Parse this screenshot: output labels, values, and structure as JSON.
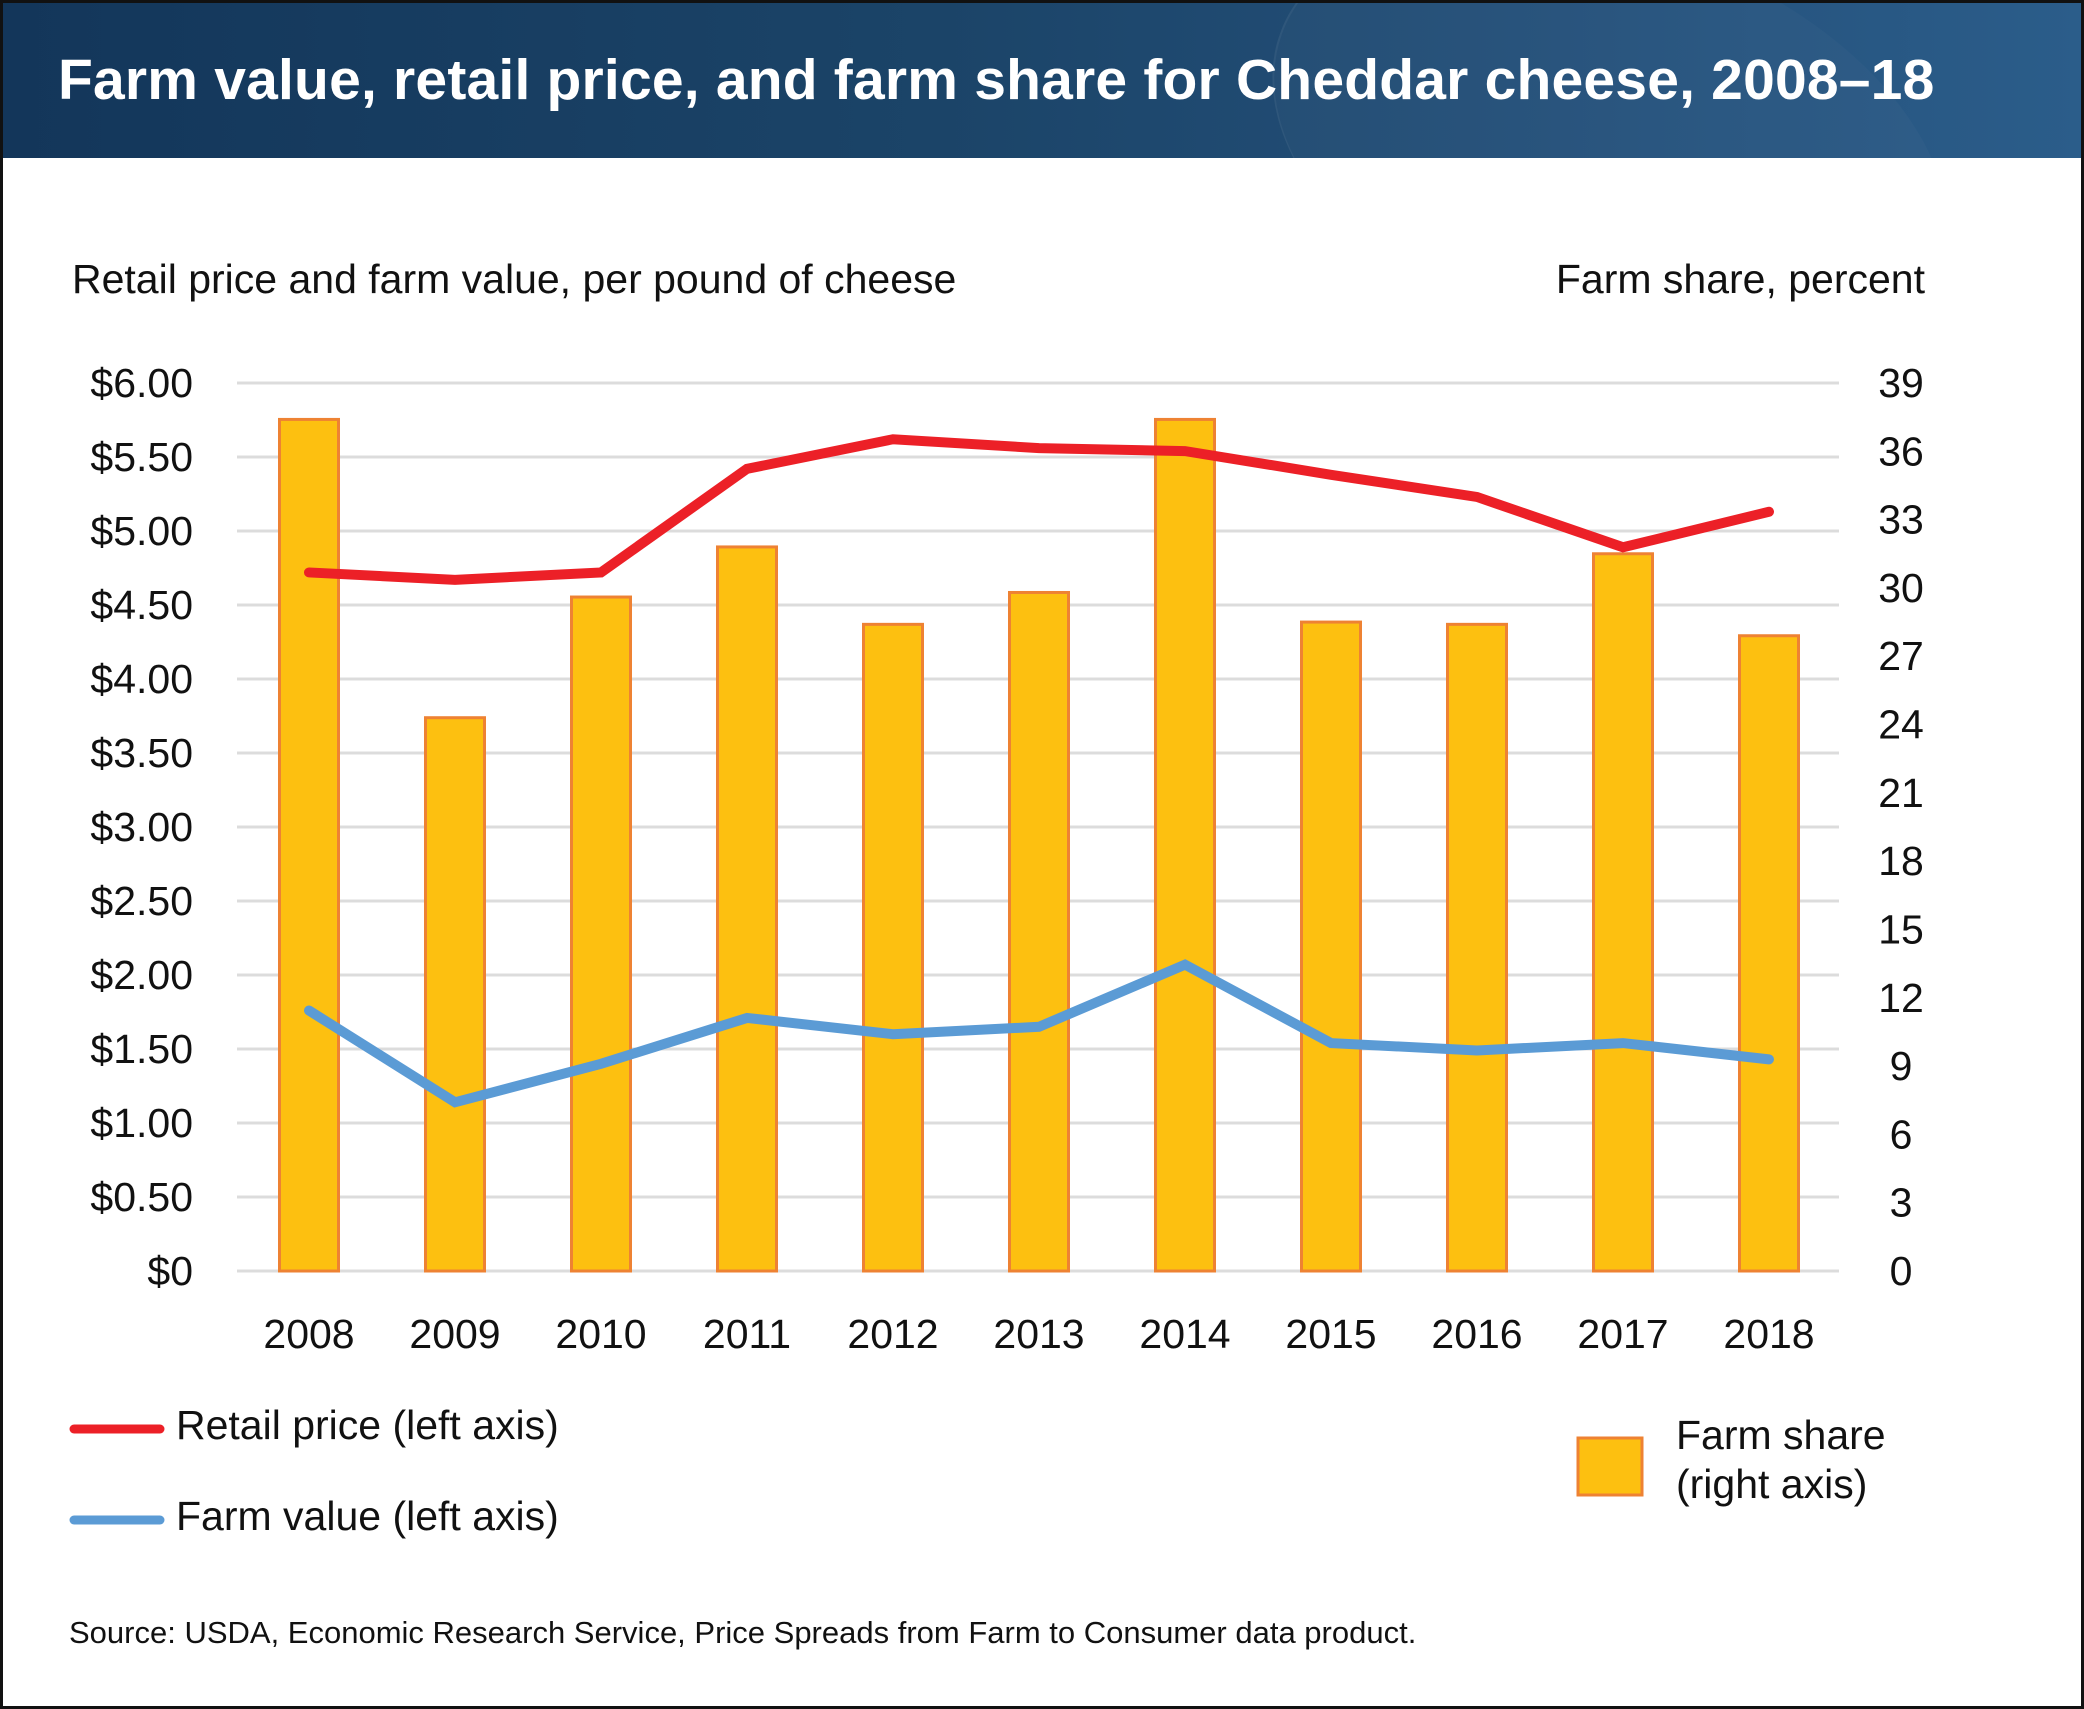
{
  "header": {
    "title": "Farm value, retail price, and farm share for Cheddar cheese, 2008–18"
  },
  "colors": {
    "header_bg": "#1b4468",
    "retail_line": "#ec2027",
    "farm_value_line": "#5b9bd5",
    "bar_fill": "#fdc010",
    "bar_stroke": "#ee8233",
    "grid": "#dcdcdc"
  },
  "chart_data": {
    "type": "bar",
    "title": "Farm value, retail price, and farm share for Cheddar cheese, 2008–18",
    "left_axis_title": "Retail price and farm value, per pound of cheese",
    "right_axis_title": "Farm share, percent",
    "categories": [
      "2008",
      "2009",
      "2010",
      "2011",
      "2012",
      "2013",
      "2014",
      "2015",
      "2016",
      "2017",
      "2018"
    ],
    "left_ylim": [
      0,
      6
    ],
    "right_ylim": [
      0,
      39
    ],
    "left_ticks": [
      "$0",
      "$0.50",
      "$1.00",
      "$1.50",
      "$2.00",
      "$2.50",
      "$3.00",
      "$3.50",
      "$4.00",
      "$4.50",
      "$5.00",
      "$5.50",
      "$6.00"
    ],
    "left_tick_values": [
      0,
      0.5,
      1,
      1.5,
      2,
      2.5,
      3,
      3.5,
      4,
      4.5,
      5,
      5.5,
      6
    ],
    "right_ticks": [
      "0",
      "3",
      "6",
      "9",
      "12",
      "15",
      "18",
      "21",
      "24",
      "27",
      "30",
      "33",
      "36",
      "39"
    ],
    "right_tick_values": [
      0,
      3,
      6,
      9,
      12,
      15,
      18,
      21,
      24,
      27,
      30,
      33,
      36,
      39
    ],
    "grid": true,
    "series": [
      {
        "name": "Farm share",
        "type": "bar",
        "axis": "right",
        "unit": "percent",
        "values": [
          37.4,
          24.3,
          29.6,
          31.8,
          28.4,
          29.8,
          37.4,
          28.5,
          28.4,
          31.5,
          27.9
        ]
      },
      {
        "name": "Retail price",
        "type": "line",
        "axis": "left",
        "unit": "dollars per pound",
        "values": [
          4.72,
          4.67,
          4.72,
          5.42,
          5.62,
          5.56,
          5.54,
          5.38,
          5.23,
          4.89,
          5.13
        ]
      },
      {
        "name": "Farm value",
        "type": "line",
        "axis": "left",
        "unit": "dollars per pound",
        "values": [
          1.76,
          1.14,
          1.4,
          1.71,
          1.6,
          1.65,
          2.07,
          1.54,
          1.49,
          1.54,
          1.43
        ]
      }
    ],
    "legend": {
      "placement": "bottom",
      "items": [
        {
          "label": "Retail price (left axis)",
          "marker": "line"
        },
        {
          "label": "Farm value (left axis)",
          "marker": "line"
        },
        {
          "label_line1": "Farm share",
          "label_line2": "(right axis)",
          "marker": "square"
        }
      ]
    }
  },
  "footer": {
    "source": "Source: USDA, Economic Research Service, Price Spreads from Farm to Consumer data product."
  }
}
